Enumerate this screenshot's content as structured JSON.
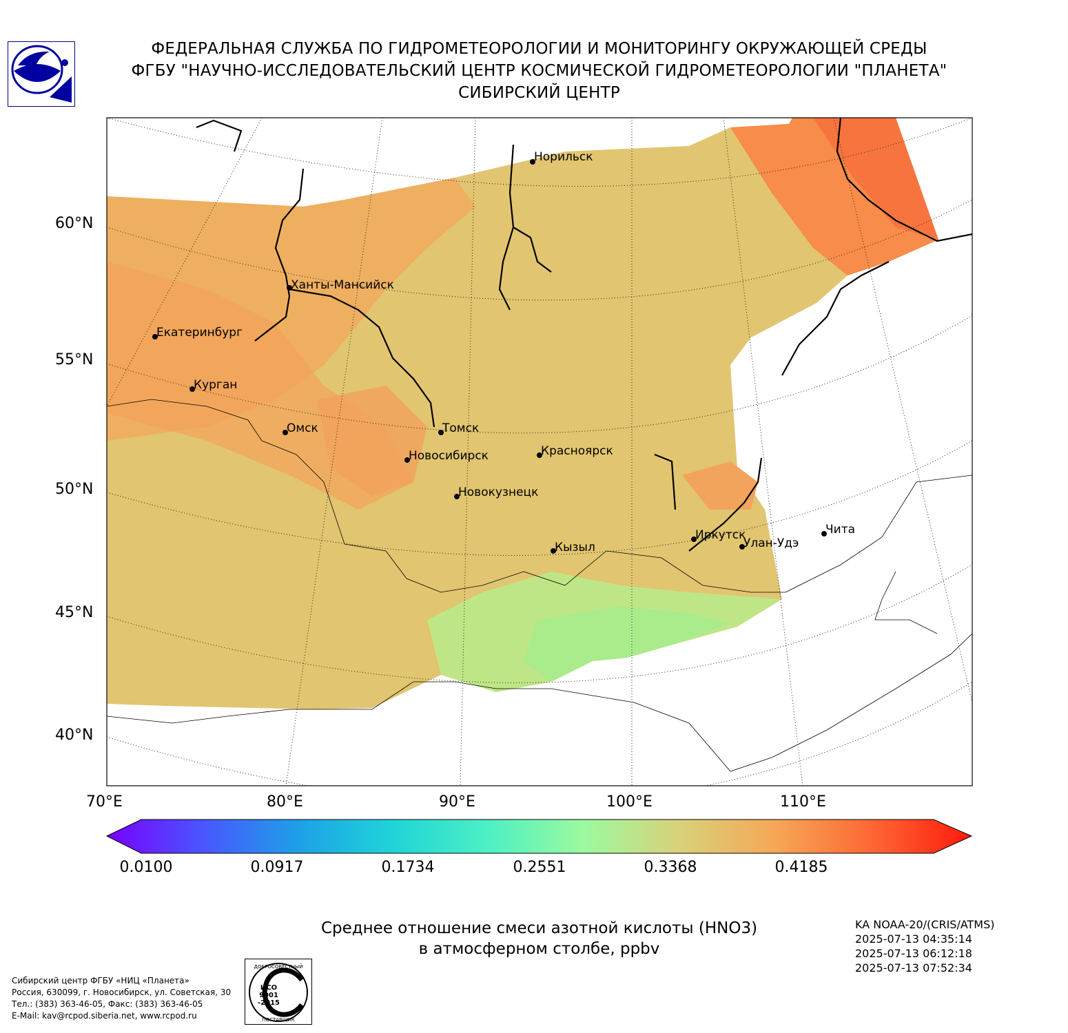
{
  "header": {
    "line1": "ФЕДЕРАЛЬНАЯ СЛУЖБА ПО ГИДРОМЕТЕОРОЛОГИИ И МОНИТОРИНГУ ОКРУЖАЮЩЕЙ СРЕДЫ",
    "line2": "ФГБУ \"НАУЧНО-ИССЛЕДОВАТЕЛЬСКИЙ ЦЕНТР КОСМИЧЕСКОЙ ГИДРОМЕТЕОРОЛОГИИ \"ПЛАНЕТА\"",
    "line3": "СИБИРСКИЙ ЦЕНТР"
  },
  "map": {
    "lat_labels": [
      "60°N",
      "55°N",
      "50°N",
      "45°N",
      "40°N"
    ],
    "lon_labels": [
      "70°E",
      "80°E",
      "90°E",
      "100°E",
      "110°E"
    ],
    "cities": [
      "Норильск",
      "Ханты-Мансийск",
      "Екатеринбург",
      "Курган",
      "Омск",
      "Томск",
      "Новосибирск",
      "Красноярск",
      "Новокузнецк",
      "Иркутск",
      "Улан-Удэ",
      "Чита",
      "Кызыл"
    ]
  },
  "colorbar": {
    "ticks": [
      "0.0100",
      "0.0917",
      "0.1734",
      "0.2551",
      "0.3368",
      "0.4185"
    ],
    "colors": [
      "#7a00ff",
      "#4a55ff",
      "#1e9fe8",
      "#1fd4d8",
      "#4cf0c4",
      "#9bfa9f",
      "#d8d27a",
      "#f5a858",
      "#fd6a35",
      "#ff1a0c"
    ]
  },
  "caption": {
    "line1": "Среднее отношение смеси азотной кислоты (HNO3)",
    "line2": "в атмосферном столбе, ppbv"
  },
  "satellite": {
    "name": "KA NOAA-20/(CRIS/ATMS)",
    "times": [
      "2025-07-13 04:35:14",
      "2025-07-13 06:12:18",
      "2025-07-13 07:52:34"
    ]
  },
  "contact": {
    "line1": "Сибирский центр ФГБУ «НИЦ «Планета»",
    "line2": "Россия, 630099, г. Новосибирск, ул. Советская, 30",
    "line3": "Тел.: (383) 363-46-05, Факс: (383) 363-46-05",
    "line4": "E-Mail: kav@rcpod.siberia.net, www.rcpod.ru"
  },
  "iso_badge": {
    "top": "ДОБРОСОВЕСТНЫЙ",
    "l1": "ИСО",
    "l2": "9001",
    "l3": "-2015",
    "bottom": "ПОСТАВЩИК"
  }
}
